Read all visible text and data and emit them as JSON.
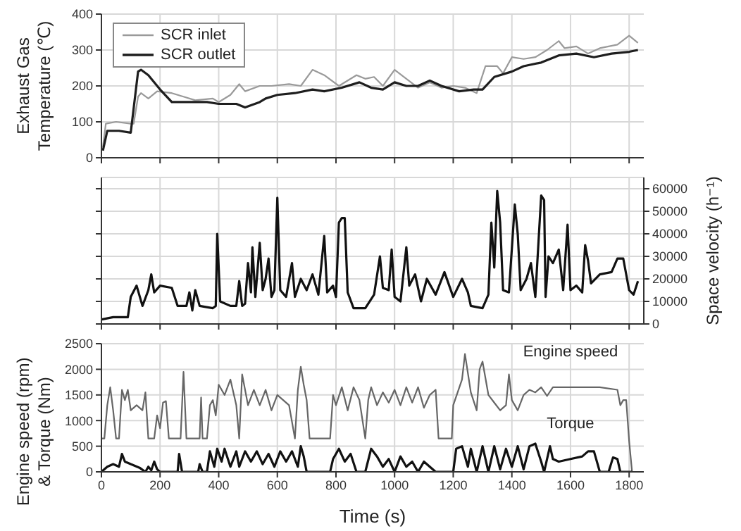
{
  "chart_data": [
    {
      "type": "line",
      "ylabel": "Exhaust Gas Temperature (℃)",
      "xlim": [
        0,
        1850
      ],
      "xticks": [
        0,
        200,
        400,
        600,
        800,
        1000,
        1200,
        1400,
        1600,
        1800
      ],
      "ylim": [
        0,
        400
      ],
      "yticks": [
        0,
        100,
        200,
        300,
        400
      ],
      "grid": true,
      "legend": "top left",
      "tick_labels": "y",
      "series": [
        {
          "name": "SCR inlet",
          "color": "#9a9a9a",
          "x": [
            5,
            15,
            50,
            100,
            110,
            125,
            135,
            160,
            190,
            240,
            280,
            320,
            380,
            400,
            440,
            470,
            490,
            540,
            580,
            640,
            680,
            720,
            760,
            810,
            870,
            900,
            930,
            960,
            1000,
            1040,
            1080,
            1120,
            1160,
            1200,
            1240,
            1280,
            1310,
            1350,
            1370,
            1400,
            1440,
            1480,
            1520,
            1560,
            1580,
            1620,
            1660,
            1700,
            1760,
            1800,
            1830
          ],
          "values": [
            30,
            95,
            100,
            95,
            95,
            170,
            180,
            165,
            185,
            180,
            170,
            160,
            165,
            155,
            175,
            205,
            185,
            200,
            200,
            205,
            200,
            245,
            230,
            200,
            230,
            220,
            225,
            200,
            245,
            220,
            195,
            210,
            195,
            200,
            195,
            180,
            255,
            255,
            235,
            280,
            275,
            280,
            300,
            325,
            305,
            310,
            290,
            305,
            315,
            340,
            320
          ]
        },
        {
          "name": "SCR outlet",
          "color": "#1e1e1e",
          "x": [
            5,
            20,
            60,
            100,
            125,
            135,
            160,
            200,
            240,
            300,
            360,
            400,
            460,
            490,
            540,
            560,
            600,
            660,
            720,
            760,
            820,
            880,
            920,
            960,
            1000,
            1040,
            1080,
            1120,
            1160,
            1220,
            1270,
            1300,
            1340,
            1400,
            1440,
            1500,
            1560,
            1620,
            1680,
            1740,
            1800,
            1830
          ],
          "values": [
            20,
            75,
            75,
            70,
            240,
            245,
            230,
            190,
            155,
            155,
            155,
            150,
            150,
            140,
            155,
            165,
            175,
            180,
            190,
            185,
            195,
            210,
            195,
            190,
            210,
            200,
            200,
            215,
            200,
            185,
            190,
            190,
            225,
            240,
            255,
            265,
            285,
            290,
            280,
            290,
            295,
            300
          ]
        }
      ]
    },
    {
      "type": "line",
      "y2label": "Space velocity (h⁻¹)",
      "xlim": [
        0,
        1850
      ],
      "xticks": [
        0,
        200,
        400,
        600,
        800,
        1000,
        1200,
        1400,
        1600,
        1800
      ],
      "y2lim": [
        0,
        65000
      ],
      "y2ticks": [
        0,
        10000,
        20000,
        30000,
        40000,
        50000,
        60000
      ],
      "grid": true,
      "tick_labels": "y",
      "series": [
        {
          "color": "#111111",
          "axis": "y2",
          "x": [
            0,
            40,
            90,
            100,
            120,
            140,
            160,
            170,
            180,
            200,
            240,
            260,
            290,
            300,
            310,
            320,
            335,
            380,
            390,
            395,
            405,
            440,
            460,
            470,
            480,
            490,
            500,
            510,
            515,
            525,
            540,
            550,
            560,
            570,
            580,
            590,
            600,
            610,
            630,
            650,
            660,
            680,
            700,
            720,
            740,
            760,
            770,
            790,
            800,
            810,
            820,
            830,
            840,
            860,
            900,
            930,
            950,
            960,
            980,
            990,
            1000,
            1020,
            1040,
            1050,
            1070,
            1090,
            1110,
            1140,
            1170,
            1200,
            1230,
            1250,
            1260,
            1300,
            1320,
            1330,
            1340,
            1350,
            1360,
            1370,
            1390,
            1410,
            1420,
            1430,
            1450,
            1465,
            1480,
            1500,
            1510,
            1515,
            1525,
            1540,
            1560,
            1575,
            1590,
            1600,
            1620,
            1640,
            1650,
            1660,
            1670,
            1700,
            1740,
            1760,
            1780,
            1800,
            1815,
            1830
          ],
          "values": [
            2000,
            3000,
            3000,
            12000,
            17000,
            8000,
            15000,
            22000,
            14000,
            17000,
            16000,
            8000,
            8000,
            14000,
            6000,
            15000,
            8000,
            7000,
            8000,
            40000,
            10000,
            8000,
            8000,
            19000,
            8000,
            9000,
            27000,
            14000,
            34000,
            12000,
            36000,
            15000,
            20000,
            29000,
            12000,
            15000,
            56000,
            15000,
            12000,
            27000,
            12000,
            20000,
            15000,
            22000,
            13000,
            39000,
            14000,
            17000,
            12000,
            45000,
            47000,
            47000,
            14000,
            7000,
            7000,
            13000,
            30000,
            16000,
            15000,
            33000,
            12000,
            10000,
            34000,
            17000,
            22000,
            10000,
            20000,
            13000,
            23000,
            12000,
            20000,
            14000,
            8000,
            7000,
            13000,
            45000,
            25000,
            59000,
            45000,
            15000,
            14000,
            53000,
            40000,
            15000,
            20000,
            27000,
            12000,
            57000,
            55000,
            12000,
            30000,
            27000,
            33000,
            15000,
            44000,
            15000,
            17000,
            14000,
            35000,
            28000,
            18000,
            22000,
            23000,
            29000,
            29000,
            15000,
            13000,
            19000
          ]
        }
      ]
    },
    {
      "type": "line",
      "xlabel": "Time (s)",
      "ylabel": "Engine speed (rpm) & Torque (Nm)",
      "xlim": [
        0,
        1850
      ],
      "xticks": [
        0,
        200,
        400,
        600,
        800,
        1000,
        1200,
        1400,
        1600,
        1800
      ],
      "ylim": [
        0,
        2500
      ],
      "yticks": [
        0,
        500,
        1000,
        1500,
        2000,
        2500
      ],
      "grid": true,
      "series": [
        {
          "name": "Engine speed",
          "color": "#666666",
          "x": [
            0,
            10,
            20,
            30,
            40,
            50,
            60,
            70,
            80,
            90,
            100,
            120,
            140,
            150,
            160,
            180,
            190,
            200,
            210,
            220,
            230,
            270,
            280,
            290,
            335,
            340,
            345,
            360,
            370,
            380,
            390,
            400,
            420,
            440,
            460,
            470,
            480,
            500,
            520,
            540,
            560,
            580,
            600,
            620,
            640,
            660,
            670,
            680,
            690,
            700,
            710,
            780,
            790,
            800,
            820,
            840,
            860,
            880,
            900,
            910,
            920,
            940,
            960,
            980,
            1000,
            1020,
            1040,
            1060,
            1080,
            1100,
            1120,
            1140,
            1150,
            1195,
            1200,
            1230,
            1240,
            1260,
            1280,
            1290,
            1300,
            1320,
            1340,
            1360,
            1380,
            1390,
            1400,
            1420,
            1440,
            1460,
            1480,
            1500,
            1520,
            1540,
            1600,
            1700,
            1760,
            1770,
            1780,
            1790,
            1800,
            1810
          ],
          "values": [
            650,
            650,
            1300,
            1650,
            1200,
            650,
            650,
            1600,
            1400,
            1600,
            1200,
            1300,
            1200,
            1550,
            650,
            650,
            1100,
            850,
            1350,
            1380,
            650,
            650,
            1950,
            650,
            650,
            1450,
            650,
            650,
            1300,
            1400,
            1100,
            1700,
            1500,
            1800,
            1300,
            650,
            1900,
            1300,
            1600,
            1300,
            1600,
            1200,
            1500,
            1400,
            1300,
            650,
            1600,
            2050,
            1700,
            1400,
            650,
            650,
            1500,
            1300,
            1650,
            1200,
            1650,
            1400,
            650,
            1400,
            1650,
            1300,
            1550,
            1350,
            1600,
            1300,
            1650,
            1350,
            1650,
            1250,
            1500,
            1600,
            650,
            650,
            1300,
            1800,
            2300,
            1550,
            1200,
            2000,
            2150,
            1500,
            1350,
            1200,
            1300,
            1900,
            1400,
            1200,
            1500,
            1600,
            1550,
            1650,
            1480,
            1650,
            1650,
            1650,
            1600,
            1300,
            1400,
            1400,
            600,
            0
          ]
        },
        {
          "name": "Torque",
          "color": "#111111",
          "x": [
            0,
            20,
            40,
            60,
            70,
            80,
            100,
            130,
            150,
            160,
            170,
            180,
            190,
            200,
            260,
            265,
            275,
            330,
            335,
            345,
            360,
            370,
            385,
            395,
            410,
            420,
            440,
            460,
            470,
            490,
            510,
            530,
            550,
            570,
            590,
            610,
            630,
            650,
            670,
            680,
            690,
            700,
            780,
            790,
            810,
            830,
            850,
            870,
            900,
            920,
            940,
            960,
            980,
            1000,
            1020,
            1040,
            1060,
            1080,
            1100,
            1120,
            1140,
            1200,
            1210,
            1230,
            1250,
            1260,
            1280,
            1300,
            1320,
            1340,
            1360,
            1380,
            1400,
            1420,
            1440,
            1460,
            1480,
            1500,
            1510,
            1530,
            1540,
            1560,
            1600,
            1640,
            1660,
            1680,
            1700,
            1730,
            1745,
            1760,
            1770,
            1810
          ],
          "values": [
            0,
            100,
            150,
            100,
            350,
            200,
            150,
            80,
            0,
            100,
            30,
            200,
            50,
            0,
            0,
            350,
            0,
            0,
            150,
            0,
            0,
            400,
            100,
            450,
            200,
            450,
            100,
            400,
            100,
            400,
            200,
            400,
            150,
            350,
            100,
            400,
            200,
            400,
            100,
            500,
            300,
            0,
            0,
            250,
            450,
            200,
            350,
            0,
            0,
            450,
            300,
            100,
            250,
            0,
            300,
            100,
            200,
            0,
            200,
            100,
            0,
            0,
            450,
            500,
            100,
            450,
            0,
            500,
            0,
            500,
            50,
            450,
            100,
            500,
            50,
            500,
            550,
            200,
            0,
            500,
            250,
            200,
            250,
            300,
            400,
            400,
            0,
            0,
            280,
            250,
            0,
            0
          ]
        }
      ]
    }
  ]
}
